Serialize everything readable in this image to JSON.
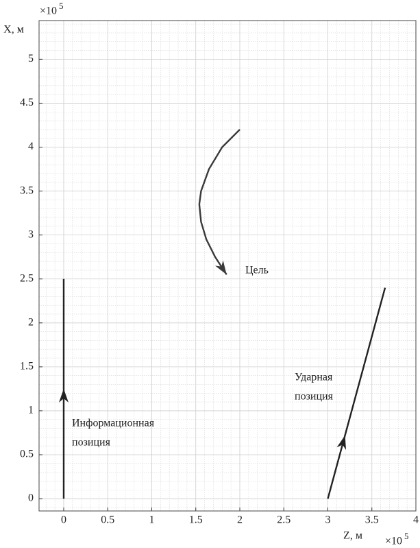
{
  "chart_data": {
    "type": "line",
    "x_label": "Z, м",
    "y_label": "X, м",
    "x_multiplier": "×10",
    "x_multiplier_power": "5",
    "y_multiplier": "×10",
    "y_multiplier_power": "5",
    "xlim": [
      -0.28,
      4
    ],
    "ylim": [
      -0.14,
      5.44
    ],
    "xticks": [
      0,
      0.5,
      1,
      1.5,
      2,
      2.5,
      3,
      3.5,
      4
    ],
    "yticks": [
      0,
      0.5,
      1,
      1.5,
      2,
      2.5,
      3,
      3.5,
      4,
      4.5,
      5
    ],
    "grid": true,
    "minor_grid": true,
    "series": [
      {
        "name": "Информационная позиция",
        "color": "#222222",
        "x": [
          0,
          0
        ],
        "values": [
          0,
          2.5
        ]
      },
      {
        "name": "Цель",
        "color": "#3a3a3a",
        "x": [
          2.0,
          1.8,
          1.65,
          1.56,
          1.54,
          1.56,
          1.62,
          1.72,
          1.85
        ],
        "values": [
          4.2,
          4.0,
          3.75,
          3.5,
          3.35,
          3.15,
          2.95,
          2.75,
          2.55
        ]
      },
      {
        "name": "Ударная позиция",
        "color": "#222222",
        "x": [
          3.0,
          3.65
        ],
        "values": [
          0,
          2.4
        ]
      }
    ],
    "annotations": [
      {
        "lines": [
          "Информационная",
          "позиция"
        ]
      },
      {
        "lines": [
          "Цель"
        ]
      },
      {
        "lines": [
          "Ударная",
          "позиция"
        ]
      }
    ]
  }
}
